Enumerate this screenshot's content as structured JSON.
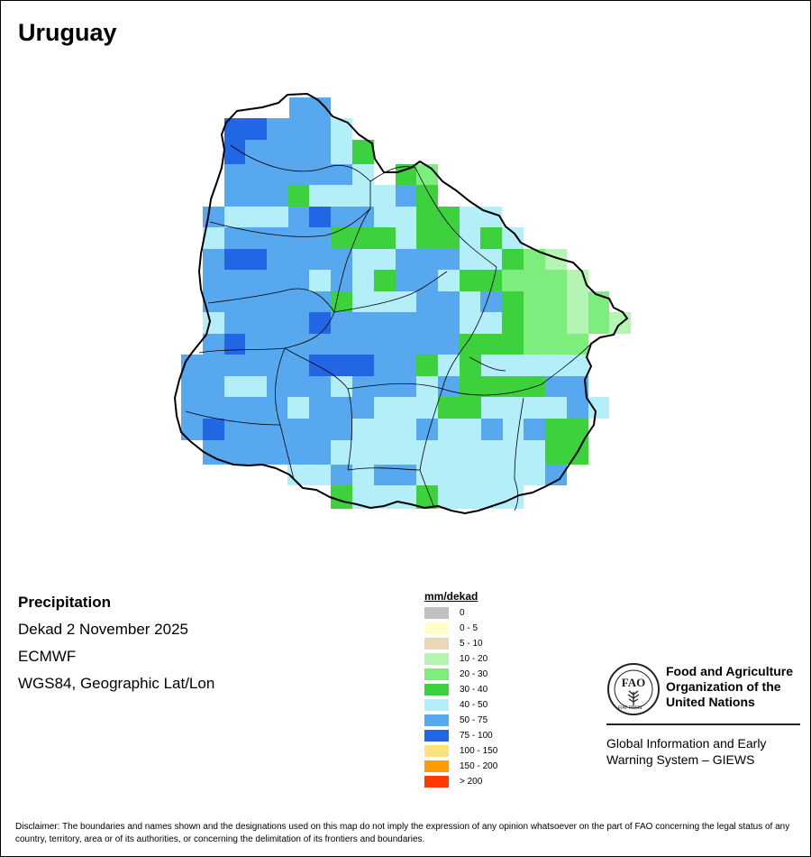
{
  "title": "Uruguay",
  "info": {
    "product": "Precipitation",
    "period": "Dekad 2 November 2025",
    "model": "ECMWF",
    "projection": "WGS84, Geographic Lat/Lon"
  },
  "legend": {
    "title": "mm/dekad",
    "items": [
      {
        "label": "0",
        "color": "#c0c0c0"
      },
      {
        "label": "0 - 5",
        "color": "#ffffc8"
      },
      {
        "label": "5 - 10",
        "color": "#e8d8b8"
      },
      {
        "label": "10 - 20",
        "color": "#b4f5b4"
      },
      {
        "label": "20 - 30",
        "color": "#7dee7d"
      },
      {
        "label": "30 - 40",
        "color": "#3dd23d"
      },
      {
        "label": "40 - 50",
        "color": "#b4eef8"
      },
      {
        "label": "50 - 75",
        "color": "#58a8f0"
      },
      {
        "label": "75 - 100",
        "color": "#2266e6"
      },
      {
        "label": "100 - 150",
        "color": "#ffe27a"
      },
      {
        "label": "150 - 200",
        "color": "#ff9c00"
      },
      {
        "label": "> 200",
        "color": "#ff3a00"
      }
    ]
  },
  "logo": {
    "organization": "Food and Agriculture Organization of the United Nations",
    "emblem_text": "FAO",
    "motto": "FIAT PANIS",
    "icon": "fao-emblem"
  },
  "giews": "Global Information and Early Warning System – GIEWS",
  "disclaimer": "Disclaimer: The boundaries and names shown and the designations used on this map do not imply the expression of any opinion whatsoever on the part of FAO concerning the legal status of any country, territory, area or of its authorities, or concerning the delimitation of its frontiers and boundaries."
}
